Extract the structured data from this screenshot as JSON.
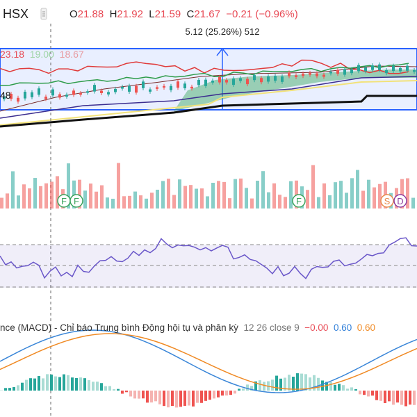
{
  "header": {
    "symbol": "HSX",
    "ohlc": [
      {
        "k": "O",
        "v": "21.88"
      },
      {
        "k": "H",
        "v": "21.92"
      },
      {
        "k": "L",
        "v": "21.59"
      },
      {
        "k": "C",
        "v": "21.67"
      },
      {
        "k": "",
        "v": "−0.21"
      },
      {
        "k": "",
        "v": "(−0.96%)"
      }
    ]
  },
  "measure_label": "5.12 (25.26%) 512",
  "bb_values": [
    {
      "text": "23.18",
      "color": "#e84a55"
    },
    {
      "text": "19.00",
      "color": "#9fd4a6"
    },
    {
      "text": "18.67",
      "color": "#e89aa0"
    }
  ],
  "left_value": "48",
  "volume_markers": [
    "F",
    "F",
    "F",
    "S",
    "D"
  ],
  "macd": {
    "label": "nce (MACD) - Chỉ báo Trung bình Động hội tụ và phân kỳ",
    "params": "12 26 close 9",
    "values": [
      {
        "text": "−0.00",
        "color": "#e84a55"
      },
      {
        "text": "0.60",
        "color": "#2f7ed8"
      },
      {
        "text": "0.60",
        "color": "#f08a24"
      }
    ]
  },
  "colors": {
    "up": "#26a69a",
    "down": "#ef5350",
    "measure": "#2962ff",
    "rsi": "#6a57c9"
  }
}
